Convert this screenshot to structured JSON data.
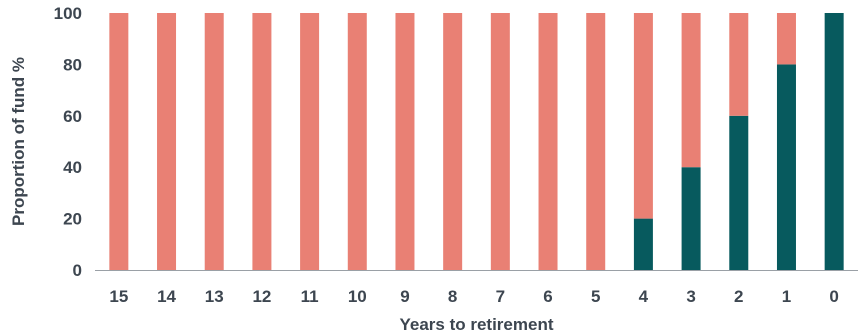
{
  "chart_data": {
    "type": "bar",
    "stacked": true,
    "title": "",
    "xlabel": "Years to retirement",
    "ylabel": "Proportion of fund %",
    "ylim": [
      0,
      100
    ],
    "yticks": [
      "0",
      "20",
      "40",
      "60",
      "80",
      "100"
    ],
    "categories": [
      "15",
      "14",
      "13",
      "12",
      "11",
      "10",
      "9",
      "8",
      "7",
      "6",
      "5",
      "4",
      "3",
      "2",
      "1",
      "0"
    ],
    "series": [
      {
        "color": "#075a5e",
        "values": [
          0,
          0,
          0,
          0,
          0,
          0,
          0,
          0,
          0,
          0,
          0,
          20,
          40,
          60,
          80,
          100
        ]
      },
      {
        "color": "#e98074",
        "values": [
          100,
          100,
          100,
          100,
          100,
          100,
          100,
          100,
          100,
          100,
          100,
          80,
          60,
          40,
          20,
          0
        ]
      }
    ],
    "grid": false,
    "legend": "none"
  }
}
